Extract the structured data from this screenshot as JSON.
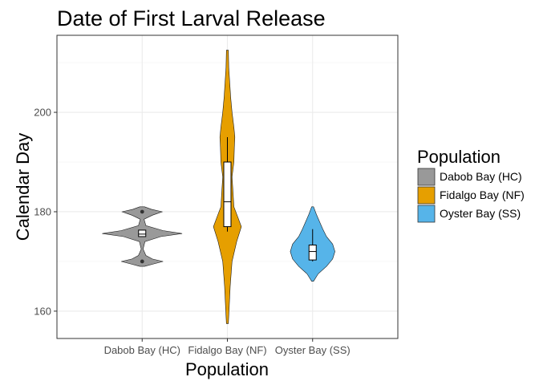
{
  "chart_data": {
    "type": "violin",
    "title": "Date of First Larval Release",
    "xlabel": "Population",
    "ylabel": "Calendar Day",
    "categories": [
      "Dabob Bay (HC)",
      "Fidalgo Bay (NF)",
      "Oyster Bay (SS)"
    ],
    "ylim": [
      154.5,
      215.5
    ],
    "yticks": [
      160,
      180,
      200
    ],
    "grid": true,
    "legend": {
      "title": "Population",
      "position": "right",
      "entries": [
        "Dabob Bay (HC)",
        "Fidalgo Bay (NF)",
        "Oyster Bay (SS)"
      ]
    },
    "series": [
      {
        "category": "Dabob Bay (HC)",
        "color": "#999999",
        "box": {
          "q1": 175,
          "median": 175.5,
          "q3": 176.3,
          "whisker_low": 175,
          "whisker_high": 176.3
        },
        "outliers": [
          180,
          170
        ],
        "density": [
          [
            169,
            0.05
          ],
          [
            169.5,
            0.25
          ],
          [
            170,
            0.45
          ],
          [
            170.5,
            0.22
          ],
          [
            171.2,
            0.08
          ],
          [
            172.5,
            0.02
          ],
          [
            174,
            0.06
          ],
          [
            175,
            0.4
          ],
          [
            175.6,
            0.86
          ],
          [
            176.2,
            0.45
          ],
          [
            177.2,
            0.08
          ],
          [
            178.5,
            0.04
          ],
          [
            179.3,
            0.22
          ],
          [
            180,
            0.43
          ],
          [
            180.5,
            0.2
          ],
          [
            181,
            0.05
          ]
        ]
      },
      {
        "category": "Fidalgo Bay (NF)",
        "color": "#E69F00",
        "box": {
          "q1": 177,
          "median": 182,
          "q3": 190,
          "whisker_low": 176,
          "whisker_high": 195
        },
        "outliers": [],
        "density": [
          [
            157.5,
            0.02
          ],
          [
            161,
            0.04
          ],
          [
            165,
            0.06
          ],
          [
            170,
            0.1
          ],
          [
            174,
            0.2
          ],
          [
            177,
            0.3
          ],
          [
            179,
            0.22
          ],
          [
            181,
            0.14
          ],
          [
            184,
            0.12
          ],
          [
            187,
            0.1
          ],
          [
            190,
            0.14
          ],
          [
            193,
            0.15
          ],
          [
            195,
            0.16
          ],
          [
            197,
            0.14
          ],
          [
            200,
            0.1
          ],
          [
            203,
            0.07
          ],
          [
            206,
            0.05
          ],
          [
            209,
            0.03
          ],
          [
            212.5,
            0.02
          ]
        ]
      },
      {
        "category": "Oyster Bay (SS)",
        "color": "#56B4E9",
        "box": {
          "q1": 170.3,
          "median": 172,
          "q3": 173.3,
          "whisker_low": 170,
          "whisker_high": 176.5
        },
        "outliers": [],
        "density": [
          [
            166,
            0.02
          ],
          [
            167.5,
            0.12
          ],
          [
            169,
            0.3
          ],
          [
            170.5,
            0.43
          ],
          [
            172,
            0.48
          ],
          [
            173.5,
            0.43
          ],
          [
            175,
            0.3
          ],
          [
            176.5,
            0.22
          ],
          [
            178,
            0.15
          ],
          [
            179.5,
            0.08
          ],
          [
            181,
            0.02
          ]
        ]
      }
    ]
  }
}
